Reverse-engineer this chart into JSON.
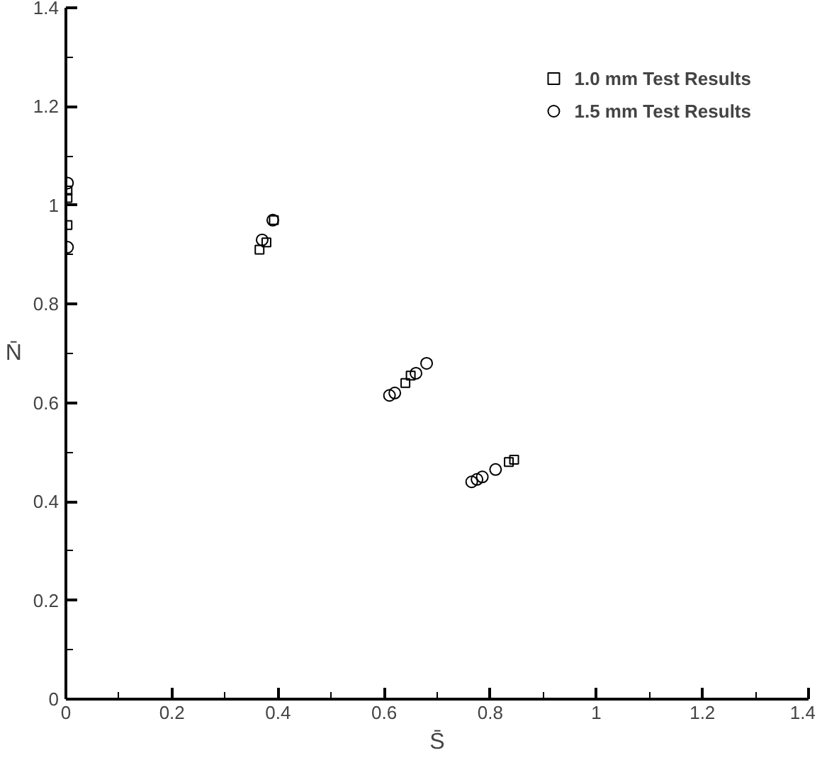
{
  "chart_data": {
    "type": "scatter",
    "xlabel": "S̄",
    "ylabel": "N̄",
    "xlim": [
      0,
      1.4
    ],
    "ylim": [
      0,
      1.4
    ],
    "xticks": [
      0,
      0.2,
      0.4,
      0.6,
      0.8,
      1,
      1.2,
      1.4
    ],
    "yticks": [
      0,
      0.2,
      0.4,
      0.6,
      0.8,
      1,
      1.2,
      1.4
    ],
    "grid": false,
    "legend": "top right",
    "series": [
      {
        "name": "1.0 mm Test Results",
        "color": "#000000",
        "marker": "square",
        "x": [
          0.003,
          0.003,
          0.003,
          0.365,
          0.378,
          0.392,
          0.64,
          0.65,
          0.835,
          0.845
        ],
        "values": [
          1.03,
          1.015,
          0.96,
          0.91,
          0.925,
          0.97,
          0.64,
          0.655,
          0.48,
          0.485
        ]
      },
      {
        "name": "1.5 mm Test Results",
        "color": "#000000",
        "marker": "circle",
        "x": [
          0.003,
          0.003,
          0.37,
          0.39,
          0.61,
          0.62,
          0.66,
          0.68,
          0.765,
          0.775,
          0.785,
          0.81
        ],
        "values": [
          1.045,
          0.915,
          0.93,
          0.97,
          0.615,
          0.62,
          0.66,
          0.68,
          0.44,
          0.445,
          0.45,
          0.465
        ]
      }
    ]
  }
}
